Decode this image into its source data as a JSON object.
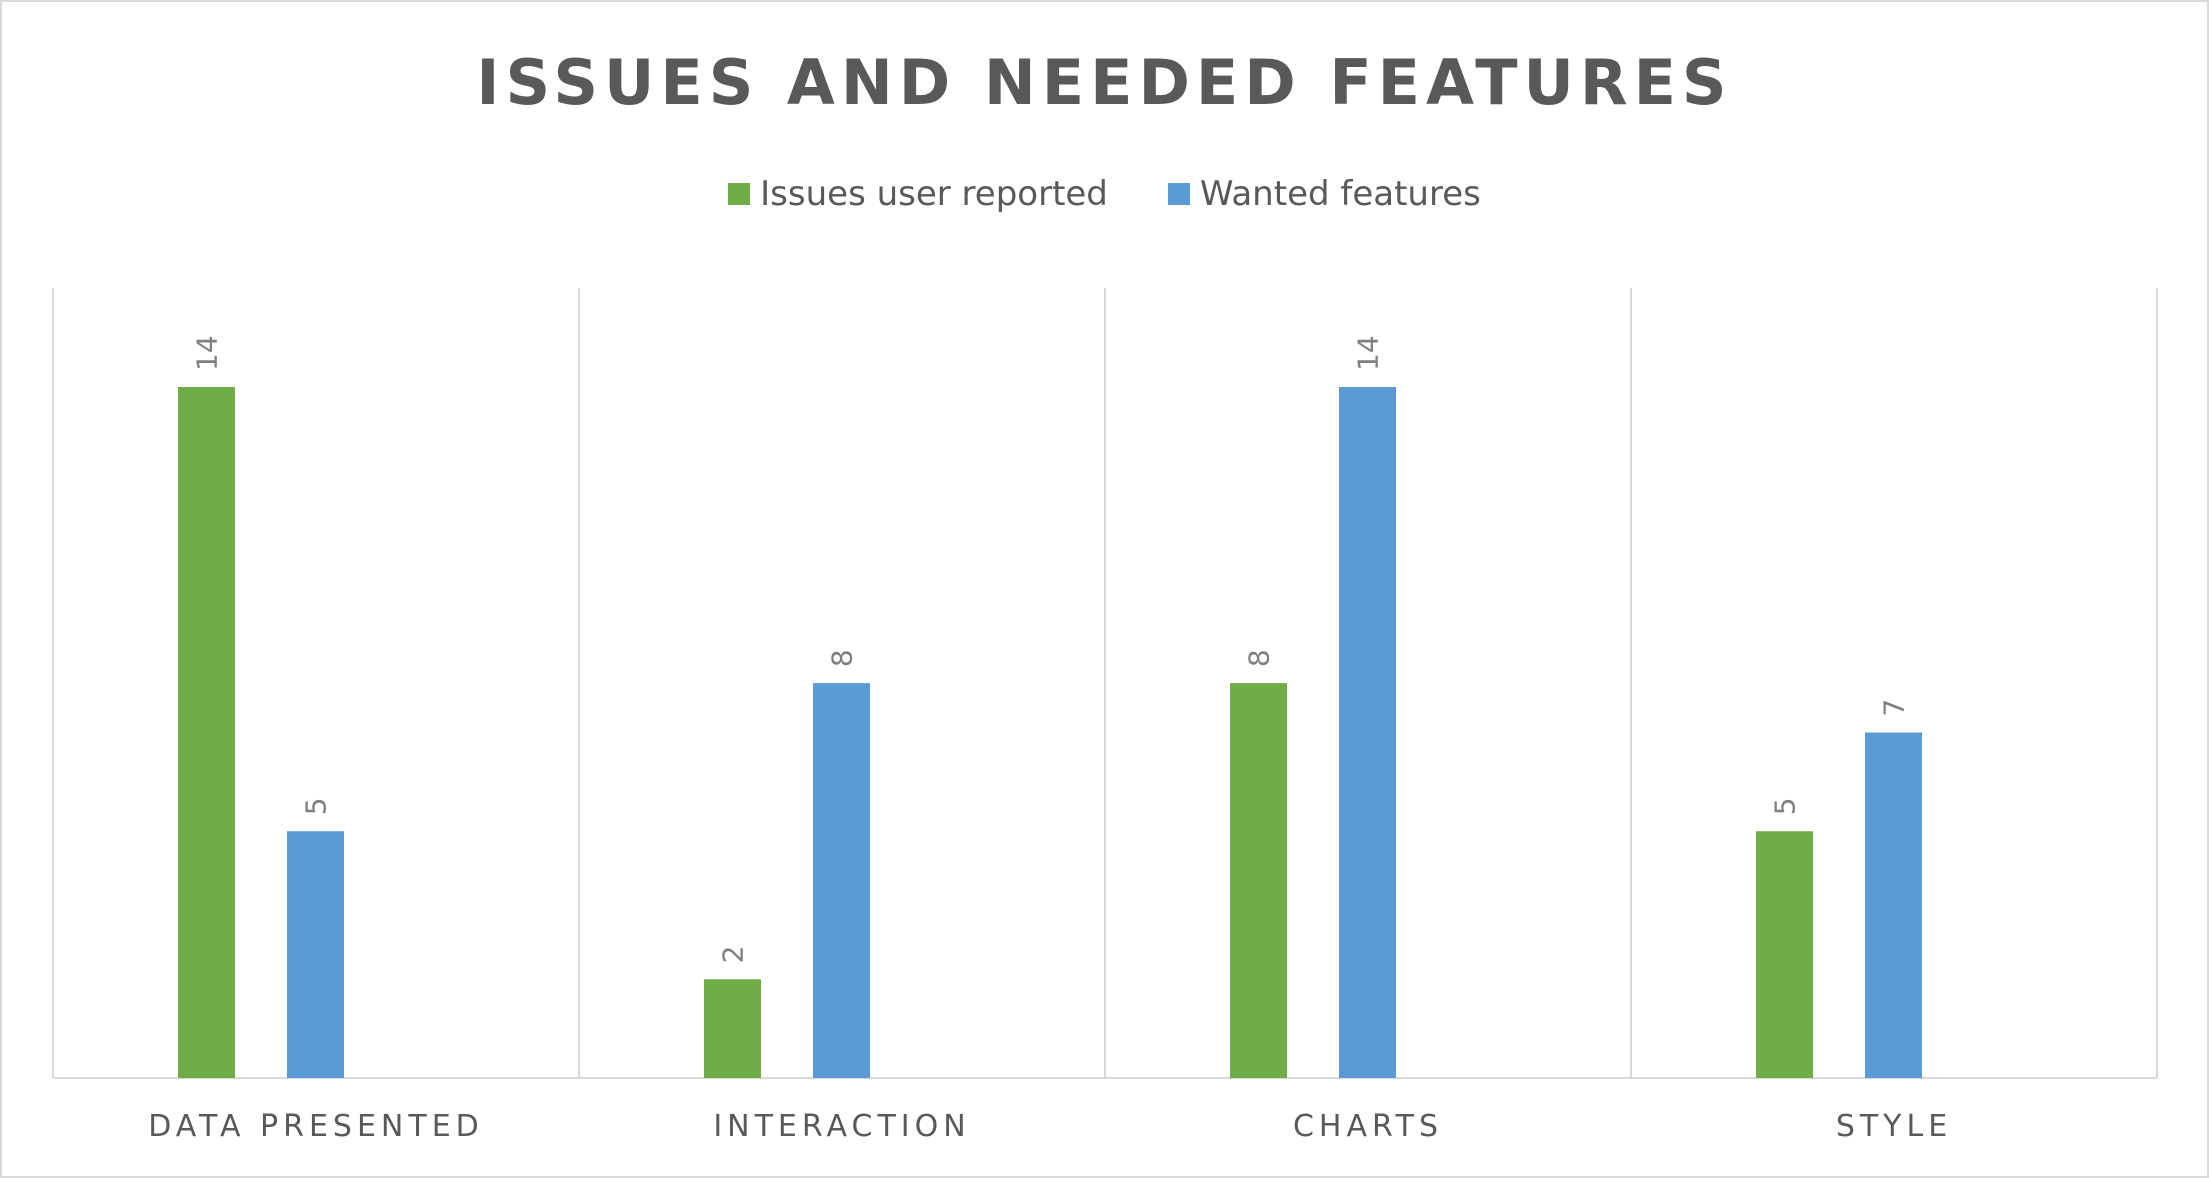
{
  "chart_data": {
    "type": "bar",
    "title": "ISSUES AND NEEDED FEATURES",
    "categories": [
      "DATA PRESENTED",
      "INTERACTION",
      "CHARTS",
      "STYLE"
    ],
    "series": [
      {
        "name": "Issues user reported",
        "values": [
          14,
          2,
          8,
          5
        ],
        "color": "#70ad47"
      },
      {
        "name": "Wanted features",
        "values": [
          5,
          8,
          14,
          7
        ],
        "color": "#5b9bd5"
      }
    ],
    "xlabel": "",
    "ylabel": "",
    "ylim": [
      0,
      16
    ],
    "grid": "vertical-category-separators",
    "legend": "top-center",
    "data_labels": true,
    "data_label_orientation": "rotated-vertical",
    "colors": {
      "axis": "#d9d9d9",
      "text": "#595959",
      "data_label": "#7f7f7f"
    }
  }
}
